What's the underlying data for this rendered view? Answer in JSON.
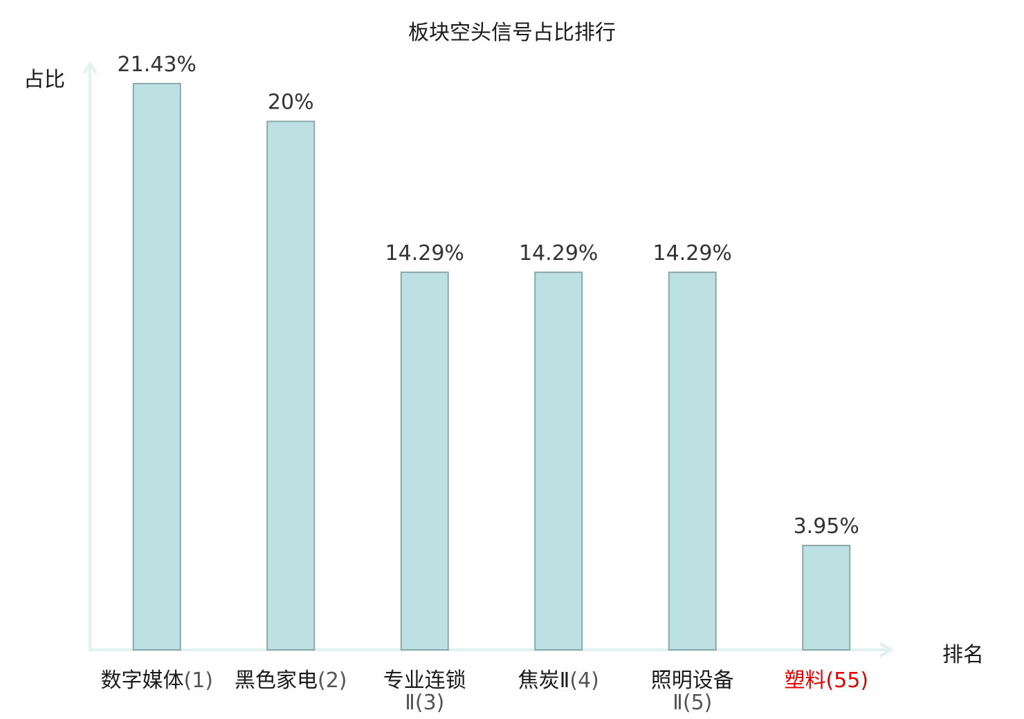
{
  "chart_data": {
    "type": "bar",
    "title": "板块空头信号占比排行",
    "ylabel": "占比",
    "xlabel": "排名",
    "categories": [
      {
        "name": "数字媒体",
        "rank": "(1)",
        "highlight": false
      },
      {
        "name": "黑色家电",
        "rank": "(2)",
        "highlight": false
      },
      {
        "name": "专业连锁",
        "rank": "Ⅱ(3)",
        "highlight": false
      },
      {
        "name": "焦炭Ⅱ",
        "rank": "(4)",
        "highlight": false
      },
      {
        "name": "照明设备",
        "rank": "Ⅱ(5)",
        "highlight": false
      },
      {
        "name": "塑料",
        "rank": "(55)",
        "highlight": true
      }
    ],
    "values": [
      21.43,
      20,
      14.29,
      14.29,
      14.29,
      3.95
    ],
    "value_labels": [
      "21.43%",
      "20%",
      "14.29%",
      "14.29%",
      "14.29%",
      "3.95%"
    ],
    "ylim": [
      0,
      22.5
    ],
    "grid": false,
    "colors": {
      "bar_fill": "#bde0e2",
      "bar_stroke": "#8aa8aa",
      "axis": "#e0f2f0",
      "label_text": "#333333",
      "highlight_text": "#e00000"
    }
  }
}
